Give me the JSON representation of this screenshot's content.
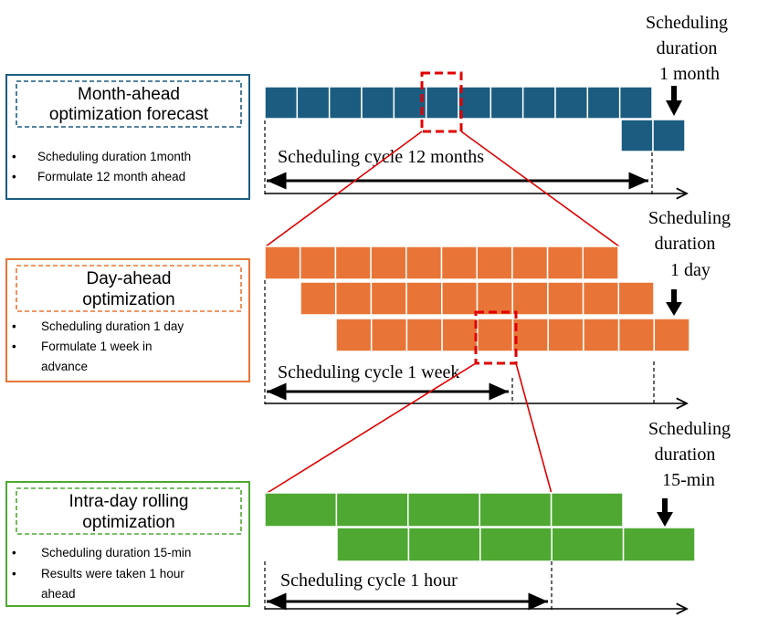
{
  "colors": {
    "month": "#1b5c80",
    "day": "#e87537",
    "intra": "#4fa832",
    "zoom": "#e00000",
    "axis": "#000000"
  },
  "month_panel": {
    "title_line1": "Month-ahead",
    "title_line2": "optimization forecast",
    "bullet1": "Scheduling duration 1month",
    "bullet2": "Formulate 12 month ahead",
    "cycle_label": "Scheduling cycle 12 months",
    "duration_line1": "Scheduling",
    "duration_line2": "duration",
    "duration_line3": "1 month"
  },
  "day_panel": {
    "title_line1": "Day-ahead",
    "title_line2": "optimization",
    "bullet1": "Scheduling duration 1 day",
    "bullet2_line1": "Formulate 1 week in",
    "bullet2_line2": "advance",
    "cycle_label": "Scheduling cycle 1 week",
    "duration_line1": "Scheduling",
    "duration_line2": "duration",
    "duration_line3": "1 day"
  },
  "intra_panel": {
    "title_line1": "Intra-day rolling",
    "title_line2": "optimization",
    "bullet1": "Scheduling duration 15-min",
    "bullet2_line1": "Results were taken 1 hour",
    "bullet2_line2": "ahead",
    "cycle_label": "Scheduling cycle 1 hour",
    "duration_line1": "Scheduling",
    "duration_line2": "duration",
    "duration_line3": "15-min"
  },
  "bullet_symbol": "•",
  "rows": {
    "month": [
      {
        "segments": 12
      },
      {
        "segments": 2
      }
    ],
    "day": [
      {
        "segments": 10
      },
      {
        "segments": 10
      },
      {
        "segments": 10
      }
    ],
    "intra": [
      {
        "segments": 5
      },
      {
        "segments": 5
      }
    ]
  }
}
